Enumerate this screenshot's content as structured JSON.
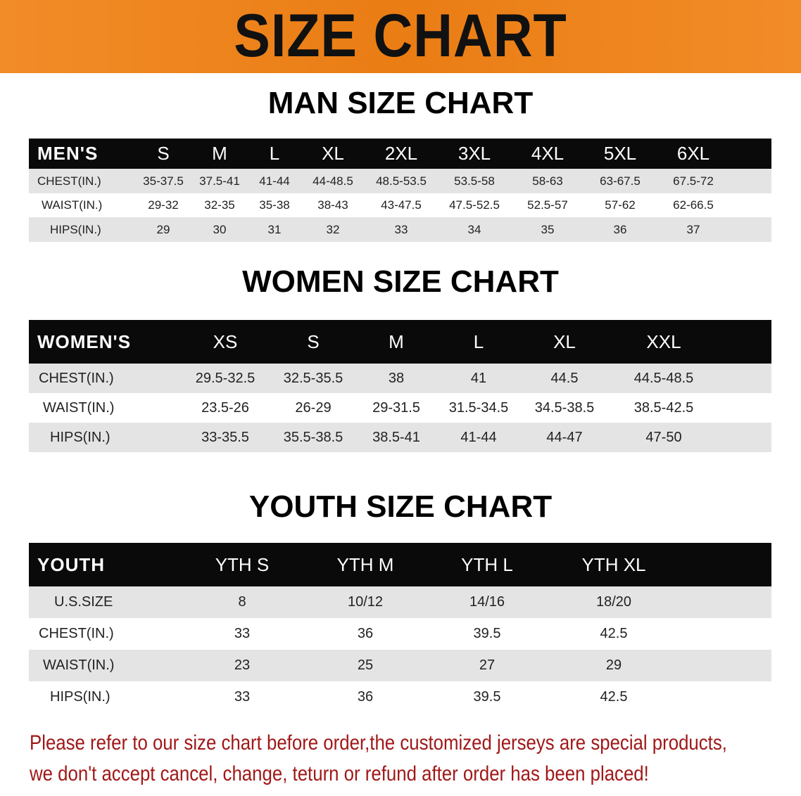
{
  "banner": {
    "title": "SIZE CHART",
    "color": "#ef8420"
  },
  "men": {
    "title": "MAN SIZE CHART",
    "header": [
      "MEN'S",
      "S",
      "M",
      "L",
      "XL",
      "2XL",
      "3XL",
      "4XL",
      "5XL",
      "6XL"
    ],
    "rows": [
      [
        "CHEST(IN.)",
        "35-37.5",
        "37.5-41",
        "41-44",
        "44-48.5",
        "48.5-53.5",
        "53.5-58",
        "58-63",
        "63-67.5",
        "67.5-72"
      ],
      [
        "WAIST(IN.)",
        "29-32",
        "32-35",
        "35-38",
        "38-43",
        "43-47.5",
        "47.5-52.5",
        "52.5-57",
        "57-62",
        "62-66.5"
      ],
      [
        "HIPS(IN.)",
        "29",
        "30",
        "31",
        "32",
        "33",
        "34",
        "35",
        "36",
        "37"
      ]
    ]
  },
  "women": {
    "title": "WOMEN SIZE CHART",
    "header": [
      "WOMEN'S",
      "XS",
      "S",
      "M",
      "L",
      "XL",
      "XXL"
    ],
    "rows": [
      [
        "CHEST(IN.)",
        "29.5-32.5",
        "32.5-35.5",
        "38",
        "41",
        "44.5",
        "44.5-48.5"
      ],
      [
        "WAIST(IN.)",
        "23.5-26",
        "26-29",
        "29-31.5",
        "31.5-34.5",
        "34.5-38.5",
        "38.5-42.5"
      ],
      [
        "HIPS(IN.)",
        "33-35.5",
        "35.5-38.5",
        "38.5-41",
        "41-44",
        "44-47",
        "47-50"
      ]
    ]
  },
  "youth": {
    "title": "YOUTH SIZE CHART",
    "header": [
      "YOUTH",
      "YTH S",
      "YTH M",
      "YTH L",
      "YTH XL"
    ],
    "rows": [
      [
        "U.S.SIZE",
        "8",
        "10/12",
        "14/16",
        "18/20"
      ],
      [
        "CHEST(IN.)",
        "33",
        "36",
        "39.5",
        "42.5"
      ],
      [
        "WAIST(IN.)",
        "23",
        "25",
        "27",
        "29"
      ],
      [
        "HIPS(IN.)",
        "33",
        "36",
        "39.5",
        "42.5"
      ]
    ]
  },
  "notice": {
    "line1": "Please refer to our size chart before order,the customized jerseys are special products,",
    "line2": "we don't accept cancel, change, teturn or refund after order has been placed!",
    "color": "#a01818"
  }
}
